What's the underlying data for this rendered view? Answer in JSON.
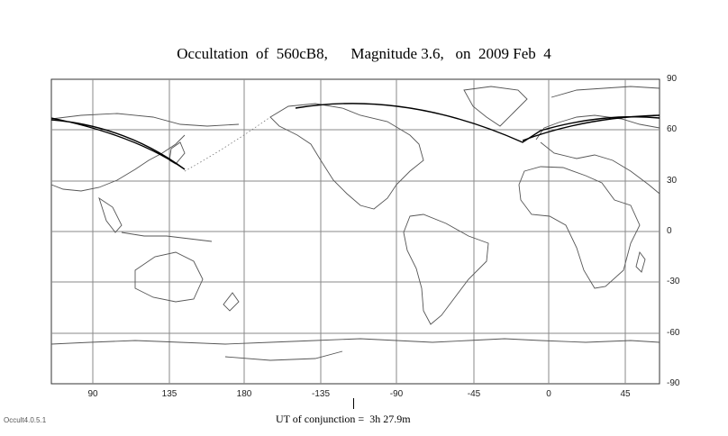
{
  "title": "Occultation  of  560cB8,      Magnitude 3.6,   on  2009 Feb  4",
  "x_axis_ticks": [
    "90",
    "135",
    "180",
    "-135",
    "-90",
    "-45",
    "0",
    "45"
  ],
  "y_axis_ticks": [
    "90",
    "60",
    "30",
    "0",
    "-30",
    "-60",
    "-90"
  ],
  "conjunction_label": "UT of conjunction =  3h 27.9m",
  "version": "Occult4.0.5.1",
  "colors": {
    "path": "#000000",
    "coast": "#555555",
    "grid": "#8a8a8a"
  }
}
